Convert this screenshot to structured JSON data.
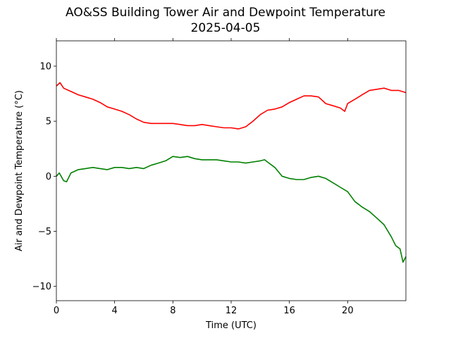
{
  "chart_data": {
    "type": "line",
    "title": "AO&SS Building Tower Air and Dewpoint Temperature",
    "subtitle": "2025-04-05",
    "xlabel": "Time (UTC)",
    "ylabel": "Air and Dewpoint Temperature (°C)",
    "xlim": [
      0,
      24
    ],
    "ylim": [
      -11.3,
      12.3
    ],
    "xticks": [
      0,
      4,
      8,
      12,
      16,
      20
    ],
    "yticks": [
      -10,
      -5,
      0,
      5,
      10
    ],
    "xtick_labels": [
      "0",
      "4",
      "8",
      "12",
      "16",
      "20"
    ],
    "ytick_labels": [
      "−10",
      "−5",
      "0",
      "5",
      "10"
    ],
    "grid": false,
    "series": [
      {
        "color": "#ff0000",
        "x": [
          0,
          0.25,
          0.5,
          1,
          1.5,
          2,
          2.5,
          3,
          3.5,
          4,
          4.5,
          5,
          5.5,
          6,
          6.5,
          7,
          7.5,
          8,
          8.5,
          9,
          9.5,
          10,
          10.5,
          11,
          11.5,
          12,
          12.5,
          13,
          13.5,
          14,
          14.5,
          15,
          15.5,
          16,
          16.5,
          17,
          17.5,
          18,
          18.5,
          19,
          19.5,
          19.8,
          20,
          20.5,
          21,
          21.5,
          22,
          22.5,
          23,
          23.5,
          24
        ],
        "y": [
          8.2,
          8.5,
          8.0,
          7.7,
          7.4,
          7.2,
          7.0,
          6.7,
          6.3,
          6.1,
          5.9,
          5.6,
          5.2,
          4.9,
          4.8,
          4.8,
          4.8,
          4.8,
          4.7,
          4.6,
          4.6,
          4.7,
          4.6,
          4.5,
          4.4,
          4.4,
          4.3,
          4.5,
          5.0,
          5.6,
          6.0,
          6.1,
          6.3,
          6.7,
          7.0,
          7.3,
          7.3,
          7.2,
          6.6,
          6.4,
          6.2,
          5.9,
          6.6,
          7.0,
          7.4,
          7.8,
          7.9,
          8.0,
          7.8,
          7.8,
          7.6
        ]
      },
      {
        "color": "#008000",
        "x": [
          0,
          0.2,
          0.5,
          0.7,
          1,
          1.5,
          2,
          2.5,
          3,
          3.5,
          4,
          4.5,
          5,
          5.5,
          6,
          6.5,
          7,
          7.5,
          8,
          8.5,
          9,
          9.5,
          10,
          10.5,
          11,
          11.5,
          12,
          12.5,
          13,
          13.5,
          14,
          14.3,
          14.6,
          15,
          15.5,
          16,
          16.5,
          17,
          17.5,
          18,
          18.5,
          19,
          19.5,
          20,
          20.5,
          21,
          21.5,
          22,
          22.5,
          23,
          23.3,
          23.6,
          23.8,
          24
        ],
        "y": [
          0.0,
          0.3,
          -0.4,
          -0.5,
          0.3,
          0.6,
          0.7,
          0.8,
          0.7,
          0.6,
          0.8,
          0.8,
          0.7,
          0.8,
          0.7,
          1.0,
          1.2,
          1.4,
          1.8,
          1.7,
          1.8,
          1.6,
          1.5,
          1.5,
          1.5,
          1.4,
          1.3,
          1.3,
          1.2,
          1.3,
          1.4,
          1.5,
          1.2,
          0.8,
          0.0,
          -0.2,
          -0.3,
          -0.3,
          -0.1,
          0.0,
          -0.2,
          -0.6,
          -1.0,
          -1.4,
          -2.3,
          -2.8,
          -3.2,
          -3.8,
          -4.4,
          -5.5,
          -6.3,
          -6.6,
          -7.8,
          -7.3
        ]
      }
    ]
  }
}
